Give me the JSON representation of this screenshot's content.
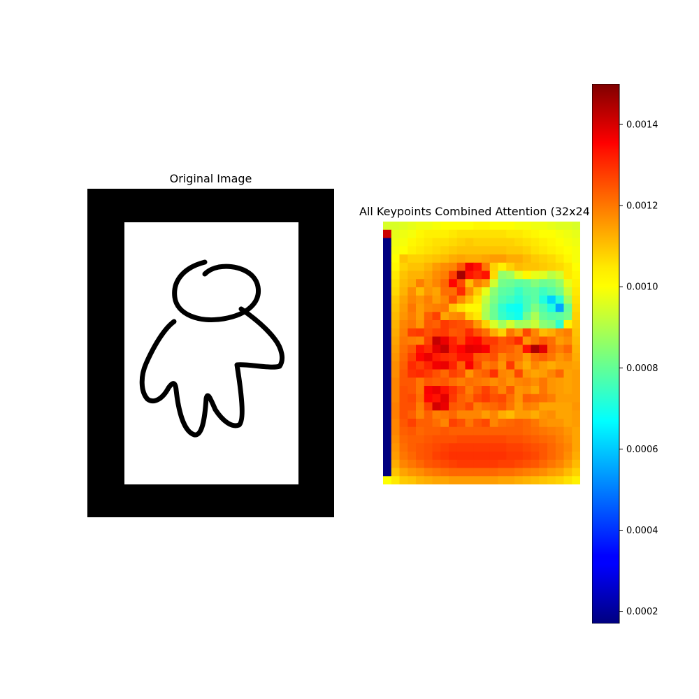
{
  "figure": {
    "left_title": "Original Image",
    "right_title": "All Keypoints Combined Attention (32x24)"
  },
  "chart_data": [
    {
      "type": "image",
      "title": "Original Image",
      "content": "black-framed white canvas containing a hand-drawn figure"
    },
    {
      "type": "heatmap",
      "title": "All Keypoints Combined Attention (32x24)",
      "rows": 32,
      "cols": 24,
      "colormap": "jet",
      "vmin": 0.00017,
      "vmax": 0.0015,
      "grid": false,
      "values": [
        [
          0.00095,
          0.00095,
          0.00096,
          0.00097,
          0.00098,
          0.00098,
          0.00099,
          0.001,
          0.001,
          0.001,
          0.001,
          0.00101,
          0.00101,
          0.001,
          0.001,
          0.001,
          0.00099,
          0.00099,
          0.00098,
          0.00098,
          0.00097,
          0.00096,
          0.00096,
          0.00095
        ],
        [
          0.0014,
          0.00097,
          0.00098,
          0.00099,
          0.00101,
          0.00102,
          0.00102,
          0.00102,
          0.00103,
          0.00104,
          0.00104,
          0.00104,
          0.00104,
          0.00104,
          0.00104,
          0.00103,
          0.00103,
          0.00102,
          0.00101,
          0.001,
          0.001,
          0.00099,
          0.00098,
          0.00097
        ],
        [
          0.00017,
          0.00098,
          0.00099,
          0.00101,
          0.00102,
          0.00103,
          0.00104,
          0.00104,
          0.00105,
          0.00106,
          0.00107,
          0.00106,
          0.00106,
          0.00106,
          0.00106,
          0.00106,
          0.00105,
          0.00104,
          0.00103,
          0.00102,
          0.00101,
          0.001,
          0.00099,
          0.00098
        ],
        [
          0.00017,
          0.00099,
          0.001,
          0.00102,
          0.00103,
          0.00104,
          0.00105,
          0.00106,
          0.00107,
          0.00108,
          0.00108,
          0.00108,
          0.00108,
          0.00108,
          0.00108,
          0.00107,
          0.00107,
          0.00106,
          0.00104,
          0.00103,
          0.00102,
          0.00101,
          0.001,
          0.00099
        ],
        [
          0.00017,
          0.001,
          0.00108,
          0.00106,
          0.00106,
          0.00107,
          0.00108,
          0.00109,
          0.00111,
          0.00112,
          0.00111,
          0.00111,
          0.00112,
          0.00113,
          0.00113,
          0.00111,
          0.00111,
          0.00109,
          0.00107,
          0.00106,
          0.00105,
          0.00103,
          0.00101,
          0.00099
        ],
        [
          0.00017,
          0.00101,
          0.00106,
          0.00108,
          0.00108,
          0.0011,
          0.00113,
          0.00115,
          0.00116,
          0.00122,
          0.00135,
          0.00131,
          0.00118,
          0.00106,
          0.00102,
          0.00106,
          0.00109,
          0.00108,
          0.00108,
          0.00107,
          0.00106,
          0.00105,
          0.00103,
          0.001
        ],
        [
          0.00017,
          0.00103,
          0.00108,
          0.0011,
          0.0011,
          0.00112,
          0.00115,
          0.00117,
          0.00125,
          0.00145,
          0.00131,
          0.00128,
          0.00131,
          0.00105,
          0.00086,
          0.00088,
          0.00096,
          0.00101,
          0.00097,
          0.00096,
          0.00091,
          0.00094,
          0.00103,
          0.00101
        ],
        [
          0.00017,
          0.00104,
          0.00109,
          0.00111,
          0.00117,
          0.00113,
          0.00116,
          0.0012,
          0.00133,
          0.00124,
          0.00109,
          0.00117,
          0.00113,
          0.00094,
          0.00082,
          0.00081,
          0.00079,
          0.0008,
          0.00084,
          0.00081,
          0.00082,
          0.00086,
          0.00097,
          0.00102
        ],
        [
          0.00017,
          0.00105,
          0.0011,
          0.00115,
          0.00109,
          0.00114,
          0.00112,
          0.00119,
          0.00119,
          0.00128,
          0.00115,
          0.00107,
          0.00097,
          0.00085,
          0.00079,
          0.00078,
          0.00074,
          0.00078,
          0.00079,
          0.00075,
          0.00078,
          0.00082,
          0.00093,
          0.00103
        ],
        [
          0.00017,
          0.00107,
          0.00112,
          0.00116,
          0.00114,
          0.00117,
          0.00113,
          0.00116,
          0.00123,
          0.00115,
          0.00109,
          0.00103,
          0.00092,
          0.00083,
          0.00077,
          0.00075,
          0.00072,
          0.00076,
          0.00079,
          0.00071,
          0.00061,
          0.00072,
          0.00088,
          0.00104
        ],
        [
          0.00017,
          0.00108,
          0.00113,
          0.00118,
          0.00113,
          0.00116,
          0.00117,
          0.00118,
          0.00108,
          0.00104,
          0.00101,
          0.00101,
          0.0009,
          0.00081,
          0.00073,
          0.00069,
          0.00068,
          0.00076,
          0.00083,
          0.00077,
          0.00071,
          0.00055,
          0.0008,
          0.00105
        ],
        [
          0.00017,
          0.00109,
          0.00114,
          0.00117,
          0.00113,
          0.00121,
          0.00125,
          0.00112,
          0.00115,
          0.00116,
          0.00106,
          0.00103,
          0.00089,
          0.00081,
          0.00074,
          0.00071,
          0.00069,
          0.00081,
          0.00089,
          0.0008,
          0.00078,
          0.00079,
          0.00082,
          0.00106
        ],
        [
          0.00017,
          0.0011,
          0.00116,
          0.00118,
          0.00114,
          0.00122,
          0.00121,
          0.00126,
          0.00124,
          0.00123,
          0.00121,
          0.00114,
          0.00106,
          0.00095,
          0.00088,
          0.00094,
          0.00088,
          0.00089,
          0.00093,
          0.00085,
          0.00083,
          0.00073,
          0.00102,
          0.00107
        ],
        [
          0.00017,
          0.00111,
          0.00117,
          0.00125,
          0.00126,
          0.00123,
          0.00125,
          0.00126,
          0.00122,
          0.00123,
          0.00128,
          0.00123,
          0.00119,
          0.00111,
          0.00106,
          0.00118,
          0.00113,
          0.00124,
          0.00116,
          0.00109,
          0.00111,
          0.00115,
          0.00117,
          0.00108
        ],
        [
          0.00017,
          0.00112,
          0.00118,
          0.00117,
          0.00116,
          0.00125,
          0.00141,
          0.00136,
          0.00129,
          0.00124,
          0.00132,
          0.00133,
          0.00126,
          0.00126,
          0.00122,
          0.00124,
          0.00128,
          0.00114,
          0.00118,
          0.00122,
          0.00119,
          0.00113,
          0.00115,
          0.00109
        ],
        [
          0.00017,
          0.00113,
          0.00119,
          0.00122,
          0.00131,
          0.00128,
          0.00137,
          0.00141,
          0.0013,
          0.00133,
          0.00137,
          0.00136,
          0.00134,
          0.00124,
          0.00122,
          0.00121,
          0.00118,
          0.00131,
          0.00144,
          0.00137,
          0.0012,
          0.00117,
          0.0012,
          0.0011
        ],
        [
          0.00017,
          0.00114,
          0.0012,
          0.00125,
          0.00133,
          0.00136,
          0.0013,
          0.00128,
          0.00127,
          0.00131,
          0.00131,
          0.00122,
          0.00121,
          0.00123,
          0.00116,
          0.00119,
          0.00118,
          0.00113,
          0.00119,
          0.00121,
          0.00118,
          0.00114,
          0.00116,
          0.00111
        ],
        [
          0.00017,
          0.00115,
          0.00121,
          0.00128,
          0.00125,
          0.00129,
          0.00135,
          0.00136,
          0.00129,
          0.00121,
          0.00134,
          0.00124,
          0.00117,
          0.00119,
          0.00114,
          0.00126,
          0.00115,
          0.00111,
          0.00116,
          0.00113,
          0.00111,
          0.00113,
          0.00113,
          0.00112
        ],
        [
          0.00017,
          0.00115,
          0.00122,
          0.00127,
          0.00128,
          0.00126,
          0.00123,
          0.0012,
          0.00125,
          0.00123,
          0.00114,
          0.00119,
          0.00121,
          0.00127,
          0.00116,
          0.00115,
          0.00124,
          0.00114,
          0.00112,
          0.00113,
          0.00116,
          0.0012,
          0.00112,
          0.00113
        ],
        [
          0.00017,
          0.00116,
          0.00122,
          0.00122,
          0.00118,
          0.00122,
          0.00121,
          0.00122,
          0.00119,
          0.00117,
          0.00119,
          0.00118,
          0.00117,
          0.00115,
          0.00117,
          0.00114,
          0.00116,
          0.00117,
          0.00115,
          0.00118,
          0.00114,
          0.00113,
          0.00112,
          0.00113
        ],
        [
          0.00017,
          0.00116,
          0.00123,
          0.00122,
          0.00118,
          0.00134,
          0.00136,
          0.00131,
          0.00127,
          0.00123,
          0.00117,
          0.00121,
          0.00125,
          0.00121,
          0.00116,
          0.00122,
          0.00114,
          0.00115,
          0.00112,
          0.00118,
          0.00114,
          0.00113,
          0.00112,
          0.00113
        ],
        [
          0.00017,
          0.00116,
          0.00123,
          0.00124,
          0.00119,
          0.00133,
          0.00131,
          0.00137,
          0.00126,
          0.00121,
          0.00119,
          0.00124,
          0.00126,
          0.00123,
          0.00124,
          0.00119,
          0.00114,
          0.00121,
          0.0012,
          0.00119,
          0.00117,
          0.00113,
          0.00113,
          0.00113
        ],
        [
          0.00017,
          0.00117,
          0.00123,
          0.00123,
          0.00117,
          0.00125,
          0.00139,
          0.00136,
          0.00122,
          0.00121,
          0.00124,
          0.00117,
          0.00119,
          0.0012,
          0.00122,
          0.00118,
          0.00113,
          0.00117,
          0.00116,
          0.00112,
          0.00112,
          0.00112,
          0.00112,
          0.00114
        ],
        [
          0.00017,
          0.00117,
          0.00123,
          0.00121,
          0.00116,
          0.00121,
          0.00117,
          0.00118,
          0.0012,
          0.00116,
          0.00116,
          0.00116,
          0.00113,
          0.00116,
          0.00111,
          0.00109,
          0.00113,
          0.00113,
          0.00111,
          0.00114,
          0.00115,
          0.00112,
          0.00112,
          0.00113
        ],
        [
          0.00017,
          0.00116,
          0.00122,
          0.00125,
          0.00121,
          0.00121,
          0.00119,
          0.00116,
          0.00125,
          0.00123,
          0.00118,
          0.00122,
          0.00124,
          0.00116,
          0.00119,
          0.0012,
          0.00121,
          0.0012,
          0.00118,
          0.00115,
          0.00114,
          0.00114,
          0.00112,
          0.00113
        ],
        [
          0.00017,
          0.00116,
          0.00121,
          0.00122,
          0.0012,
          0.00121,
          0.00121,
          0.00122,
          0.00121,
          0.00121,
          0.00121,
          0.00121,
          0.00121,
          0.00121,
          0.00121,
          0.00121,
          0.00121,
          0.0012,
          0.00119,
          0.00118,
          0.00117,
          0.00116,
          0.00114,
          0.00112
        ],
        [
          0.00017,
          0.00115,
          0.0012,
          0.00121,
          0.00121,
          0.00122,
          0.00123,
          0.00123,
          0.00123,
          0.00124,
          0.00124,
          0.00124,
          0.00124,
          0.00124,
          0.00124,
          0.00123,
          0.00123,
          0.00122,
          0.00121,
          0.0012,
          0.00119,
          0.00117,
          0.00115,
          0.00112
        ],
        [
          0.00017,
          0.00114,
          0.00119,
          0.00121,
          0.00122,
          0.00123,
          0.00124,
          0.00125,
          0.00126,
          0.00126,
          0.00126,
          0.00126,
          0.00126,
          0.00126,
          0.00126,
          0.00125,
          0.00125,
          0.00124,
          0.00123,
          0.00122,
          0.0012,
          0.00118,
          0.00116,
          0.00112
        ],
        [
          0.00017,
          0.00113,
          0.00118,
          0.0012,
          0.00122,
          0.00123,
          0.00125,
          0.00126,
          0.00127,
          0.00127,
          0.00127,
          0.00127,
          0.00127,
          0.00127,
          0.00127,
          0.00126,
          0.00126,
          0.00125,
          0.00124,
          0.00122,
          0.0012,
          0.00118,
          0.00115,
          0.00111
        ],
        [
          0.00017,
          0.00111,
          0.00116,
          0.00118,
          0.0012,
          0.00122,
          0.00123,
          0.00124,
          0.00125,
          0.00126,
          0.00126,
          0.00126,
          0.00126,
          0.00126,
          0.00125,
          0.00125,
          0.00124,
          0.00123,
          0.00122,
          0.0012,
          0.00118,
          0.00116,
          0.00113,
          0.00109
        ],
        [
          0.00017,
          0.00108,
          0.00112,
          0.00114,
          0.00115,
          0.00117,
          0.00118,
          0.00119,
          0.0012,
          0.0012,
          0.0012,
          0.0012,
          0.0012,
          0.0012,
          0.00119,
          0.00119,
          0.00118,
          0.00117,
          0.00116,
          0.00115,
          0.00113,
          0.00112,
          0.00109,
          0.00106
        ],
        [
          0.001,
          0.00103,
          0.00107,
          0.00108,
          0.0011,
          0.00111,
          0.00112,
          0.00112,
          0.00113,
          0.00113,
          0.00113,
          0.00113,
          0.00113,
          0.00113,
          0.00112,
          0.00112,
          0.00111,
          0.0011,
          0.00109,
          0.00108,
          0.00107,
          0.00106,
          0.00104,
          0.00102
        ]
      ]
    },
    {
      "type": "colorbar",
      "colormap": "jet",
      "range": [
        0.00017,
        0.0015
      ],
      "tick_values": [
        0.0002,
        0.0004,
        0.0006,
        0.0008,
        0.001,
        0.0012,
        0.0014
      ],
      "tick_labels": [
        "0.0002",
        "0.0004",
        "0.0006",
        "0.0008",
        "0.0010",
        "0.0012",
        "0.0014"
      ]
    }
  ]
}
